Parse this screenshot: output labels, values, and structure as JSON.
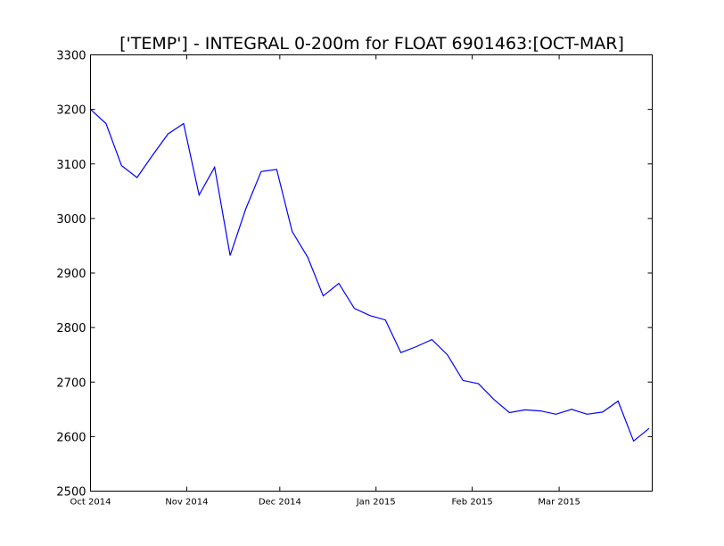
{
  "chart_data": {
    "type": "line",
    "title": "['TEMP'] - INTEGRAL 0-200m for FLOAT 6901463:[OCT-MAR]",
    "xlabel": "",
    "ylabel": "",
    "ylim": [
      2500,
      3300
    ],
    "xlim": [
      "2014-10-01",
      "2015-03-31"
    ],
    "yticks": [
      2500,
      2600,
      2700,
      2800,
      2900,
      3000,
      3100,
      3200,
      3300
    ],
    "xticks": [
      {
        "date": "2014-10-01",
        "label": "Oct 2014"
      },
      {
        "date": "2014-11-01",
        "label": "Nov 2014"
      },
      {
        "date": "2014-12-01",
        "label": "Dec 2014"
      },
      {
        "date": "2015-01-01",
        "label": "Jan 2015"
      },
      {
        "date": "2015-02-01",
        "label": "Feb 2015"
      },
      {
        "date": "2015-03-01",
        "label": "Mar 2015"
      }
    ],
    "grid": false,
    "color": "#0000ff",
    "series": [
      {
        "x": [
          "2014-10-01",
          "2014-10-06",
          "2014-10-11",
          "2014-10-16",
          "2014-10-21",
          "2014-10-26",
          "2014-10-31",
          "2014-11-05",
          "2014-11-10",
          "2014-11-15",
          "2014-11-20",
          "2014-11-25",
          "2014-11-30",
          "2014-12-05",
          "2014-12-10",
          "2014-12-15",
          "2014-12-20",
          "2014-12-25",
          "2014-12-30",
          "2015-01-04",
          "2015-01-09",
          "2015-01-14",
          "2015-01-19",
          "2015-01-24",
          "2015-01-29",
          "2015-02-03",
          "2015-02-08",
          "2015-02-13",
          "2015-02-18",
          "2015-02-23",
          "2015-02-28",
          "2015-03-05",
          "2015-03-10",
          "2015-03-15",
          "2015-03-20",
          "2015-03-25",
          "2015-03-30"
        ],
        "values": [
          3200,
          3174,
          3097,
          3075,
          3116,
          3155,
          3174,
          3043,
          3094,
          2932,
          3017,
          3086,
          3090,
          2976,
          2929,
          2858,
          2881,
          2835,
          2822,
          2814,
          2754,
          2765,
          2778,
          2750,
          2703,
          2697,
          2668,
          2644,
          2649,
          2647,
          2641,
          2650,
          2641,
          2645,
          2665,
          2592,
          2615
        ]
      }
    ]
  }
}
